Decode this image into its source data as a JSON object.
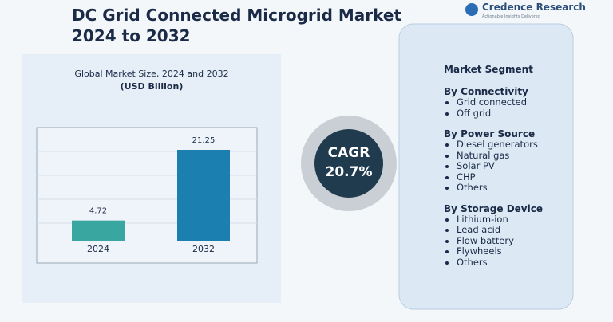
{
  "title": "DC Grid Connected Microgrid Market  2024 to 2032",
  "logo": {
    "name": "Credence Research",
    "tagline": "Actionable Insights Delivered"
  },
  "chart_data": {
    "type": "bar",
    "title": "Global Market Size, 2024 and 2032",
    "subtitle": "(USD Billion)",
    "categories": [
      "2024",
      "2032"
    ],
    "values": [
      4.72,
      21.25
    ],
    "colors": [
      "#3aa6a0",
      "#1b7fb0"
    ]
  },
  "cagr": {
    "label": "CAGR",
    "value": "20.7%"
  },
  "segments": {
    "title": "Market Segment",
    "groups": [
      {
        "name": "By Connectivity",
        "items": [
          "Grid connected",
          "Off grid"
        ]
      },
      {
        "name": "By Power Source",
        "items": [
          "Diesel generators",
          "Natural gas",
          "Solar PV",
          "CHP",
          "Others"
        ]
      },
      {
        "name": "By Storage Device",
        "items": [
          "Lithium-ion",
          "Lead acid",
          "Flow battery",
          "Flywheels",
          "Others"
        ]
      }
    ]
  }
}
